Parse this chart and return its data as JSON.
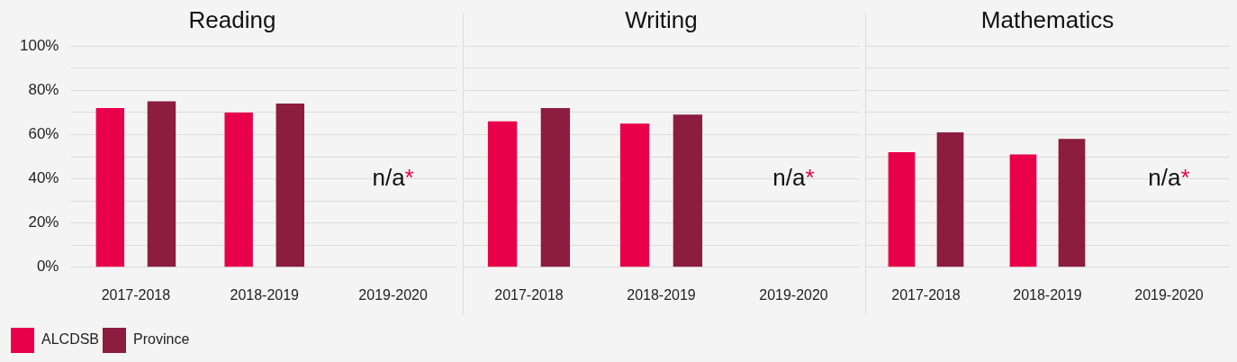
{
  "chart_data": [
    {
      "type": "bar",
      "title": "Reading",
      "categories": [
        "2017-2018",
        "2018-2019",
        "2019-2020"
      ],
      "series": [
        {
          "name": "ALCDSB",
          "color": "#e8004a",
          "values": [
            72,
            70,
            null
          ]
        },
        {
          "name": "Province",
          "color": "#8c1c40",
          "values": [
            75,
            74,
            null
          ]
        }
      ],
      "ylim": [
        0,
        100
      ],
      "yticks": [
        {
          "value": 0,
          "label": "0%"
        },
        {
          "value": 10,
          "label": null
        },
        {
          "value": 20,
          "label": "20%"
        },
        {
          "value": 30,
          "label": null
        },
        {
          "value": 40,
          "label": "40%"
        },
        {
          "value": 50,
          "label": null
        },
        {
          "value": 60,
          "label": "60%"
        },
        {
          "value": 70,
          "label": null
        },
        {
          "value": 80,
          "label": "80%"
        },
        {
          "value": 90,
          "label": null
        },
        {
          "value": 100,
          "label": "100%"
        }
      ],
      "grid": "y",
      "legend": "bottom",
      "annotations": [
        "n/a*"
      ]
    },
    {
      "type": "bar",
      "title": "Writing",
      "categories": [
        "2017-2018",
        "2018-2019",
        "2019-2020"
      ],
      "series": [
        {
          "color": "#e8004a",
          "values": [
            66,
            65,
            null
          ]
        },
        {
          "color": "#8c1c40",
          "values": [
            72,
            69,
            null
          ]
        }
      ],
      "ylim": [
        0,
        100
      ],
      "yticks": [
        0,
        10,
        20,
        30,
        40,
        50,
        60,
        70,
        80,
        90,
        100
      ],
      "grid": "y",
      "tick_labels": "x",
      "annotations": [
        "n/a*"
      ]
    },
    {
      "type": "bar",
      "title": "Mathematics",
      "categories": [
        "2017-2018",
        "2018-2019",
        "2019-2020"
      ],
      "series": [
        {
          "color": "#e8004a",
          "values": [
            52,
            51,
            null
          ]
        },
        {
          "color": "#8c1c40",
          "values": [
            61,
            58,
            null
          ]
        }
      ],
      "ylim": [
        0,
        100
      ],
      "yticks": [
        0,
        10,
        20,
        30,
        40,
        50,
        60,
        70,
        80,
        90,
        100
      ],
      "grid": "y",
      "tick_labels": "x",
      "annotations": [
        "n/a*"
      ]
    }
  ]
}
